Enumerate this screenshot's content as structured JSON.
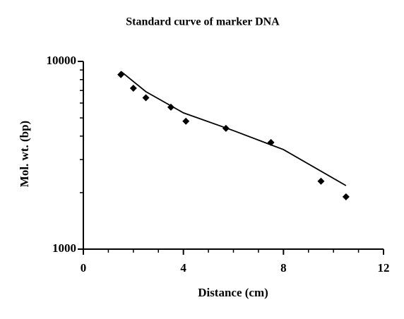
{
  "chart_data": {
    "type": "scatter",
    "title": "Standard curve of marker DNA",
    "x_label": "Distance (cm)",
    "y_label": "Mol. wt. (bp)",
    "y_log": true,
    "xlim": [
      0,
      12
    ],
    "xticks": [
      0,
      4,
      8,
      12
    ],
    "xminorticks": [
      1,
      2,
      3,
      5,
      6,
      7,
      9,
      10,
      11
    ],
    "ylim": [
      1000,
      10000
    ],
    "yticks": [
      1000,
      10000
    ],
    "yminorticks": [
      2000,
      3000,
      4000,
      5000,
      6000,
      7000,
      8000,
      9000
    ],
    "series": [
      {
        "style": "points",
        "color": "#000000",
        "x": [
          1.5,
          2.0,
          2.5,
          3.5,
          4.1,
          5.7,
          7.5,
          9.5,
          10.5
        ],
        "values": [
          8500,
          7200,
          6400,
          5700,
          4800,
          4400,
          3700,
          2300,
          1900
        ]
      },
      {
        "style": "line",
        "color": "#000000",
        "x": [
          1.5,
          2.5,
          4,
          6,
          8,
          10.5
        ],
        "values": [
          8850,
          6900,
          5320,
          4280,
          3390,
          2180
        ]
      }
    ]
  }
}
